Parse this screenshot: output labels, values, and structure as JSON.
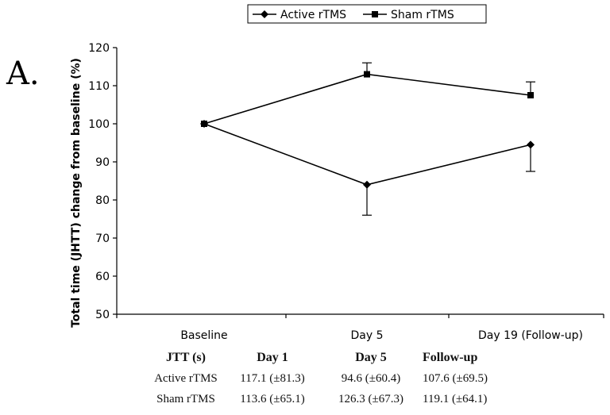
{
  "panel_label": "A.",
  "chart_data": {
    "type": "line",
    "ylabel": "Total time (JHTT) change from baseline (%)",
    "xlabel": "",
    "categories": [
      "Baseline",
      "Day 5",
      "Day 19 (Follow-up)"
    ],
    "ylim": [
      50,
      120
    ],
    "yticks": [
      50,
      60,
      70,
      80,
      90,
      100,
      110,
      120
    ],
    "grid": false,
    "legend_position": "top-center",
    "series": [
      {
        "name": "Active rTMS",
        "marker": "diamond",
        "color": "#000000",
        "values": [
          100,
          84,
          94.5
        ],
        "error": [
          0,
          8,
          7
        ]
      },
      {
        "name": "Sham rTMS",
        "marker": "square",
        "color": "#000000",
        "values": [
          100,
          113,
          107.5
        ],
        "error": [
          0,
          3,
          3.5
        ]
      }
    ]
  },
  "table": {
    "header": [
      "JTT (s)",
      "Day 1",
      "Day 5",
      "Follow-up"
    ],
    "rows": [
      [
        "Active rTMS",
        "117.1 (±81.3)",
        "94.6 (±60.4)",
        "107.6 (±69.5)"
      ],
      [
        "Sham rTMS",
        "113.6 (±65.1)",
        "126.3 (±67.3)",
        "119.1 (±64.1)"
      ]
    ]
  }
}
